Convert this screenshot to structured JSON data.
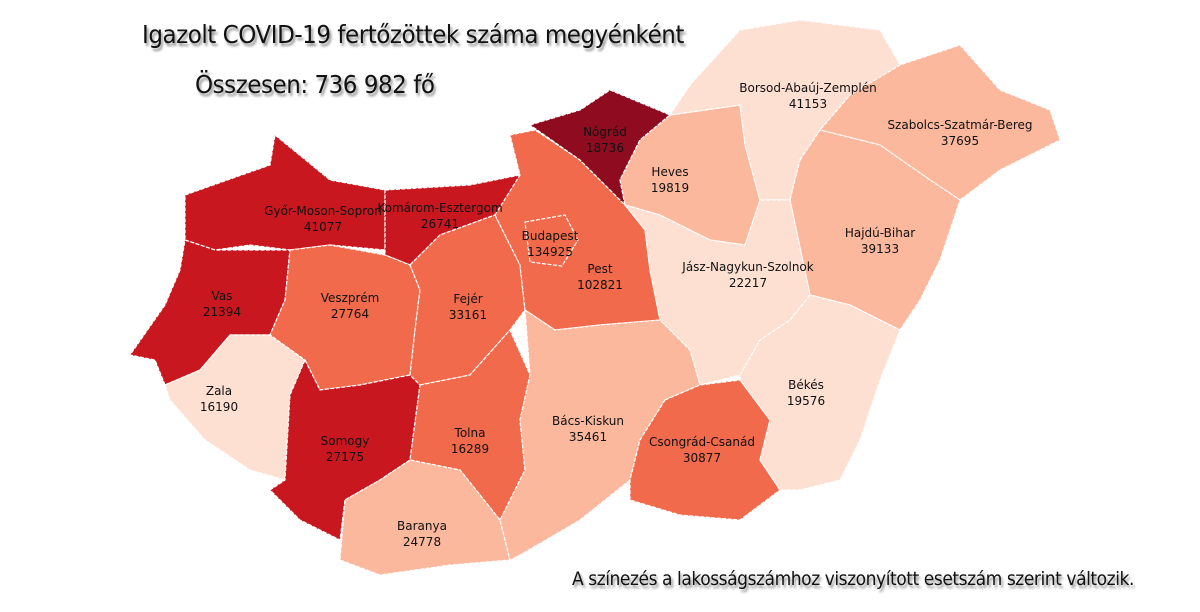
{
  "title": "Igazolt COVID-19 fertőzöttek száma megyénként",
  "total": "Összesen: 736 982 fő",
  "note": "A színezés a lakosságszámhoz viszonyított esetszám szerint változik.",
  "colors": {
    "level1": "#fde0d2",
    "level2": "#fbb89c",
    "level3": "#f06a4b",
    "level4": "#c8171e",
    "level5": "#8e0b20"
  },
  "counties": [
    {
      "id": "gyor",
      "name": "Győr-Moson-Sopron",
      "cases": "41077",
      "level": "level4"
    },
    {
      "id": "komarom",
      "name": "Komárom-Esztergom",
      "cases": "26741",
      "level": "level4"
    },
    {
      "id": "vas",
      "name": "Vas",
      "cases": "21394",
      "level": "level4"
    },
    {
      "id": "zala",
      "name": "Zala",
      "cases": "16190",
      "level": "level1"
    },
    {
      "id": "veszprem",
      "name": "Veszprém",
      "cases": "27764",
      "level": "level3"
    },
    {
      "id": "somogy",
      "name": "Somogy",
      "cases": "27175",
      "level": "level4"
    },
    {
      "id": "fejer",
      "name": "Fejér",
      "cases": "33161",
      "level": "level3"
    },
    {
      "id": "tolna",
      "name": "Tolna",
      "cases": "16289",
      "level": "level3"
    },
    {
      "id": "baranya",
      "name": "Baranya",
      "cases": "24778",
      "level": "level2"
    },
    {
      "id": "pest",
      "name": "Pest",
      "cases": "102821",
      "level": "level3"
    },
    {
      "id": "budapest",
      "name": "Budapest",
      "cases": "134925",
      "level": "level3"
    },
    {
      "id": "nograd",
      "name": "Nógrád",
      "cases": "18736",
      "level": "level5"
    },
    {
      "id": "heves",
      "name": "Heves",
      "cases": "19819",
      "level": "level2"
    },
    {
      "id": "borsod",
      "name": "Borsod-Abaúj-Zemplén",
      "cases": "41153",
      "level": "level1"
    },
    {
      "id": "szabolcs",
      "name": "Szabolcs-Szatmár-Bereg",
      "cases": "37695",
      "level": "level2"
    },
    {
      "id": "hajdu",
      "name": "Hajdú-Bihar",
      "cases": "39133",
      "level": "level2"
    },
    {
      "id": "jasz",
      "name": "Jász-Nagykun-Szolnok",
      "cases": "22217",
      "level": "level1"
    },
    {
      "id": "bacs",
      "name": "Bács-Kiskun",
      "cases": "35461",
      "level": "level2"
    },
    {
      "id": "csongrad",
      "name": "Csongrád-Csanád",
      "cases": "30877",
      "level": "level3"
    },
    {
      "id": "bekes",
      "name": "Békés",
      "cases": "19576",
      "level": "level1"
    }
  ]
}
